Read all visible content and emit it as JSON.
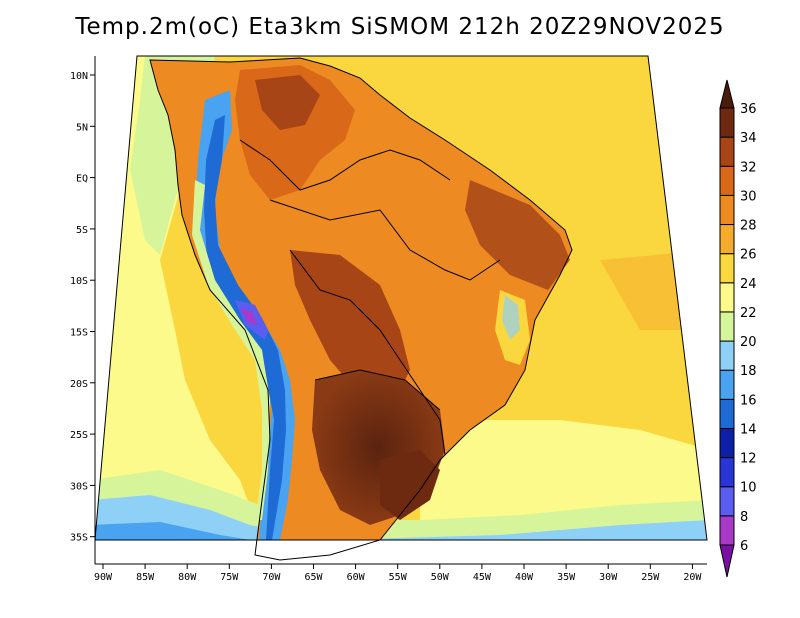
{
  "title": "Temp.2m(oC) Eta3km SiSMOM 212h 20Z29NOV2025",
  "latitude_labels": [
    "10N",
    "5N",
    "EQ",
    "5S",
    "10S",
    "15S",
    "20S",
    "25S",
    "30S",
    "35S"
  ],
  "longitude_labels": [
    "90W",
    "85W",
    "80W",
    "75W",
    "70W",
    "65W",
    "60W",
    "55W",
    "50W",
    "45W",
    "40W",
    "35W",
    "30W",
    "25W",
    "20W"
  ],
  "colorbar": {
    "unit": "oC",
    "levels": [
      6,
      8,
      10,
      12,
      14,
      16,
      18,
      20,
      22,
      24,
      26,
      28,
      30,
      32,
      34,
      36
    ],
    "colors": [
      "#7a0fa3",
      "#a83ac7",
      "#5b5cf0",
      "#2a35d8",
      "#0c1fa6",
      "#1f6bd6",
      "#4aa3f0",
      "#8fd0f7",
      "#d6f59a",
      "#fbfa8b",
      "#fbd73f",
      "#f5ac2c",
      "#ee8a22",
      "#d96818",
      "#a74517",
      "#6e2a11",
      "#4a1a0a"
    ]
  }
}
